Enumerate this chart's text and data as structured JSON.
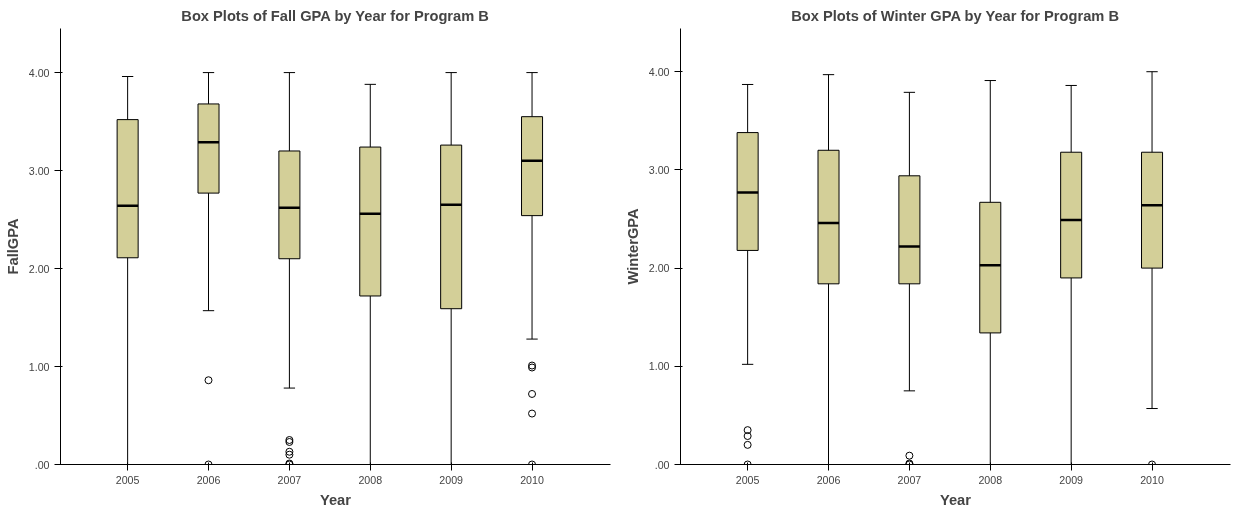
{
  "chart_data": [
    {
      "type": "box",
      "title": "Box Plots of Fall GPA by Year for Program B",
      "xlabel": "Year",
      "ylabel": "FallGPA",
      "categories": [
        "2005",
        "2006",
        "2007",
        "2008",
        "2009",
        "2010"
      ],
      "color": "#d3cf98",
      "ylim": [
        0,
        4.45
      ],
      "yticks": [
        {
          "value": 0,
          "label": ".00"
        },
        {
          "value": 1,
          "label": "1.00"
        },
        {
          "value": 2,
          "label": "2.00"
        },
        {
          "value": 3,
          "label": "3.00"
        },
        {
          "value": 4,
          "label": "4.00"
        }
      ],
      "grid": false,
      "boxes": [
        {
          "low": 0,
          "q1": 2.11,
          "median": 2.64,
          "q3": 3.52,
          "high": 3.96
        },
        {
          "low": 1.57,
          "q1": 2.77,
          "median": 3.29,
          "q3": 3.68,
          "high": 4.0,
          "outliers": [
            0.86,
            0
          ]
        },
        {
          "low": 0.78,
          "q1": 2.1,
          "median": 2.62,
          "q3": 3.2,
          "high": 4.0,
          "outliers": [
            0.25,
            0.23,
            0.13,
            0.1,
            0.01,
            0
          ]
        },
        {
          "low": 0,
          "q1": 1.72,
          "median": 2.56,
          "q3": 3.24,
          "high": 3.88
        },
        {
          "low": 0,
          "q1": 1.59,
          "median": 2.65,
          "q3": 3.26,
          "high": 4.0
        },
        {
          "low": 1.28,
          "q1": 2.54,
          "median": 3.1,
          "q3": 3.55,
          "high": 4.0,
          "outliers": [
            1.01,
            0.99,
            0.72,
            0.52,
            0
          ]
        }
      ]
    },
    {
      "type": "box",
      "title": "Box Plots of Winter GPA by Year for Program B",
      "xlabel": "Year",
      "ylabel": "WinterGPA",
      "categories": [
        "2005",
        "2006",
        "2007",
        "2008",
        "2009",
        "2010"
      ],
      "color": "#d3cf98",
      "ylim": [
        0,
        4.44
      ],
      "yticks": [
        {
          "value": 0,
          "label": ".00"
        },
        {
          "value": 1,
          "label": "1.00"
        },
        {
          "value": 2,
          "label": "2.00"
        },
        {
          "value": 3,
          "label": "3.00"
        },
        {
          "value": 4,
          "label": "4.00"
        }
      ],
      "grid": false,
      "boxes": [
        {
          "low": 1.02,
          "q1": 2.18,
          "median": 2.77,
          "q3": 3.38,
          "high": 3.87,
          "outliers": [
            0.35,
            0.29,
            0.2,
            0
          ]
        },
        {
          "low": 0,
          "q1": 1.84,
          "median": 2.46,
          "q3": 3.2,
          "high": 3.97
        },
        {
          "low": 0.75,
          "q1": 1.84,
          "median": 2.22,
          "q3": 2.94,
          "high": 3.79,
          "outliers": [
            0.09,
            0.01,
            0
          ]
        },
        {
          "low": 0,
          "q1": 1.34,
          "median": 2.03,
          "q3": 2.67,
          "high": 3.91
        },
        {
          "low": 0,
          "q1": 1.9,
          "median": 2.49,
          "q3": 3.18,
          "high": 3.86
        },
        {
          "low": 0.57,
          "q1": 2.0,
          "median": 2.64,
          "q3": 3.18,
          "high": 4.0,
          "outliers": [
            0
          ]
        }
      ]
    }
  ]
}
